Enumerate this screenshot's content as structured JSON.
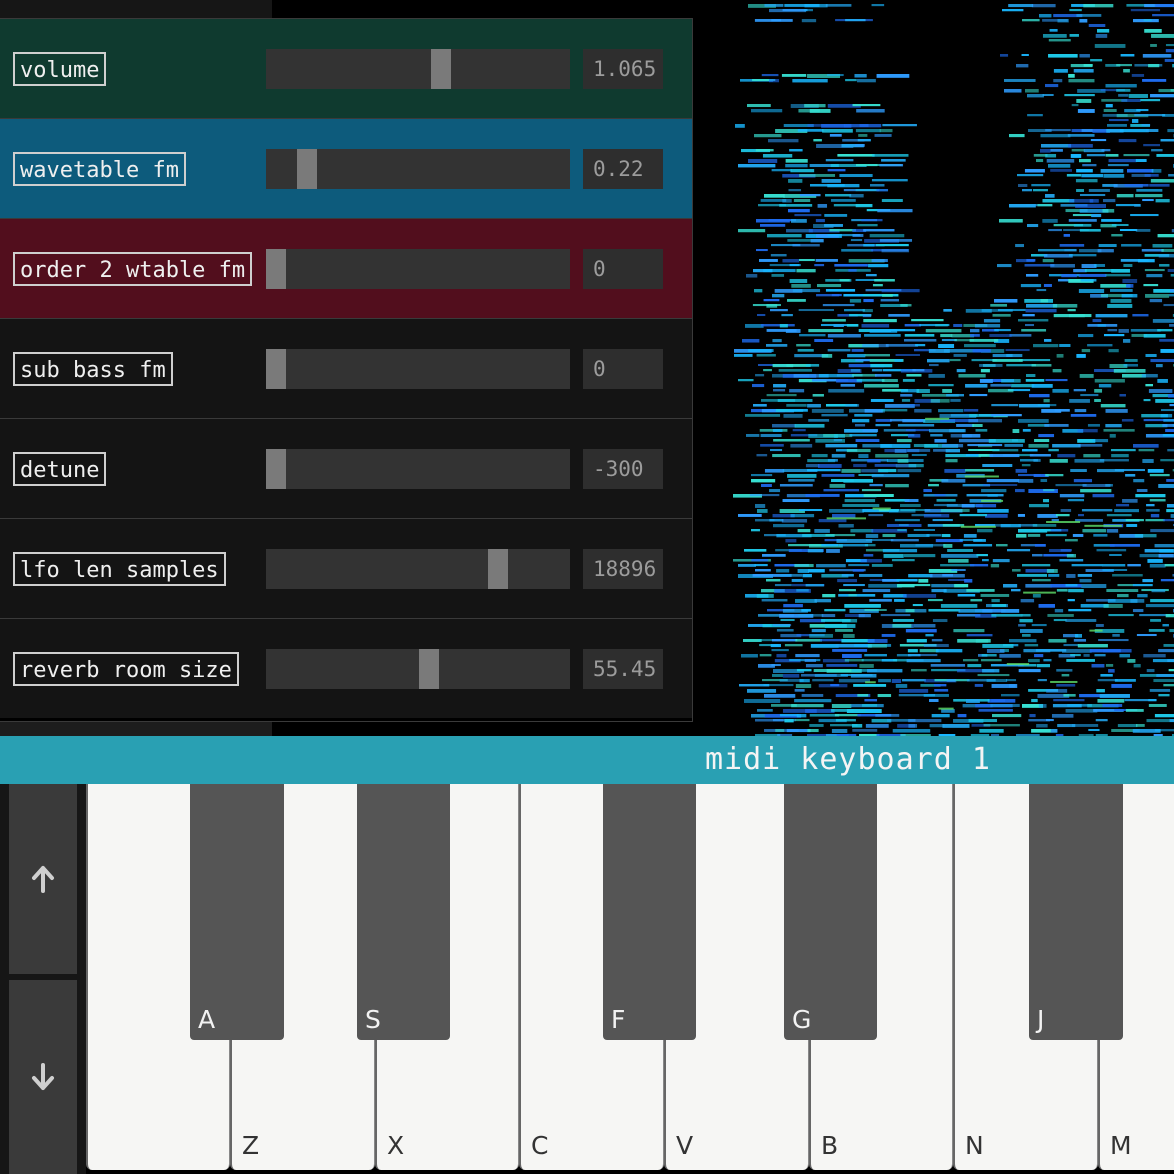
{
  "params": [
    {
      "label": "volume",
      "value": "1.065",
      "level": 0.58,
      "bg": "#0f3a2f"
    },
    {
      "label": "wavetable fm",
      "value": "0.22",
      "level": 0.11,
      "bg": "#0d5b7c"
    },
    {
      "label": "order 2 wtable fm",
      "value": "0",
      "level": 0.0,
      "bg": "#520e1d"
    },
    {
      "label": "sub bass fm",
      "value": "0",
      "level": 0.0,
      "bg": "#141414"
    },
    {
      "label": "detune",
      "value": "-300",
      "level": 0.0,
      "bg": "#141414"
    },
    {
      "label": "lfo len samples",
      "value": "18896",
      "level": 0.78,
      "bg": "#141414"
    },
    {
      "label": "reverb room size",
      "value": "55.45",
      "level": 0.54,
      "bg": "#141414"
    }
  ],
  "midi": {
    "title": "midi keyboard 1",
    "accent": "#29a0b3",
    "octave_up_icon": "arrow-up-icon",
    "octave_down_icon": "arrow-down-icon",
    "white_keys": [
      "",
      "Z",
      "X",
      "C",
      "V",
      "B",
      "N",
      "M"
    ],
    "black_keys": [
      "A",
      "S",
      "F",
      "G",
      "J"
    ]
  }
}
